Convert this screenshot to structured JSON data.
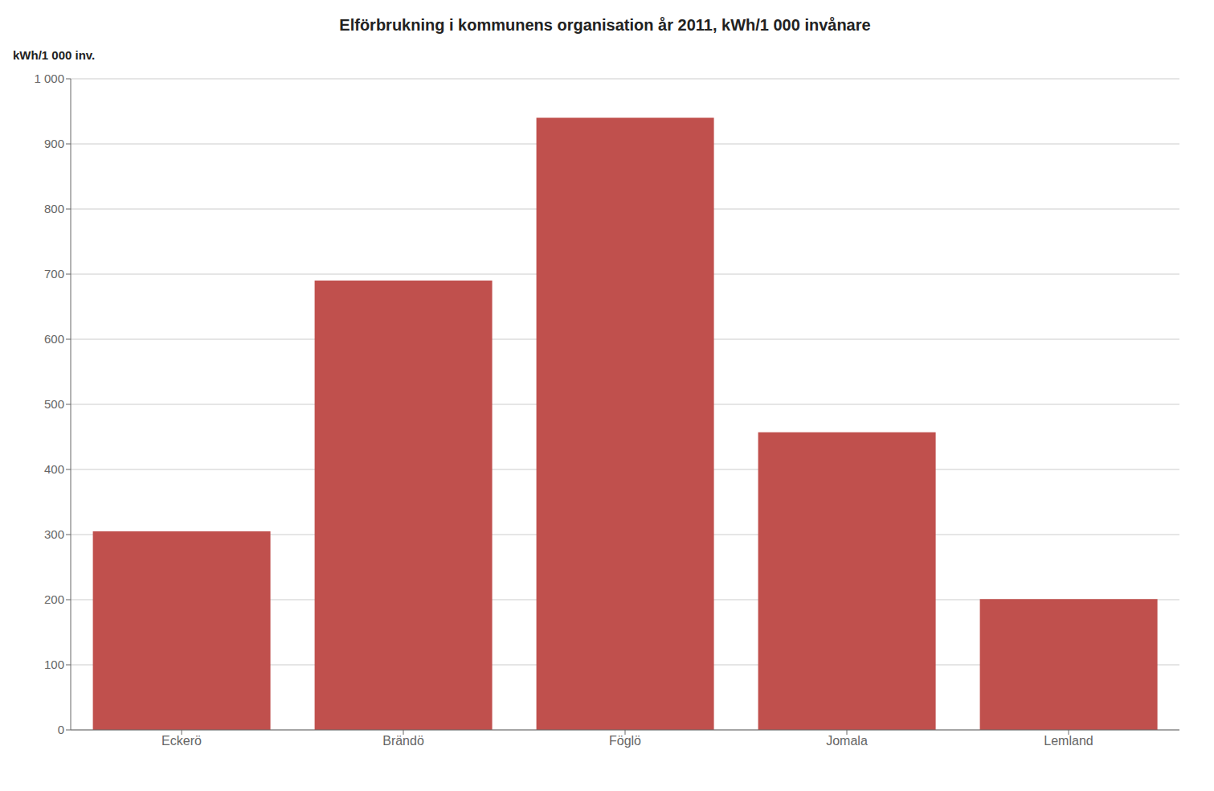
{
  "chart_data": {
    "type": "bar",
    "title": "Elförbrukning i kommunens organisation år 2011, kWh/1 000 invånare",
    "ylabel": "kWh/1 000 inv.",
    "categories": [
      "Eckerö",
      "Brändö",
      "Föglö",
      "Jomala",
      "Lemland"
    ],
    "values": [
      305,
      690,
      940,
      457,
      201
    ],
    "color": "#c0504d",
    "ylim": [
      0,
      1000
    ],
    "yticks": [
      0,
      100,
      200,
      300,
      400,
      500,
      600,
      700,
      800,
      900,
      {
        "value": 1000,
        "label": "1 000"
      }
    ],
    "grid": true
  }
}
